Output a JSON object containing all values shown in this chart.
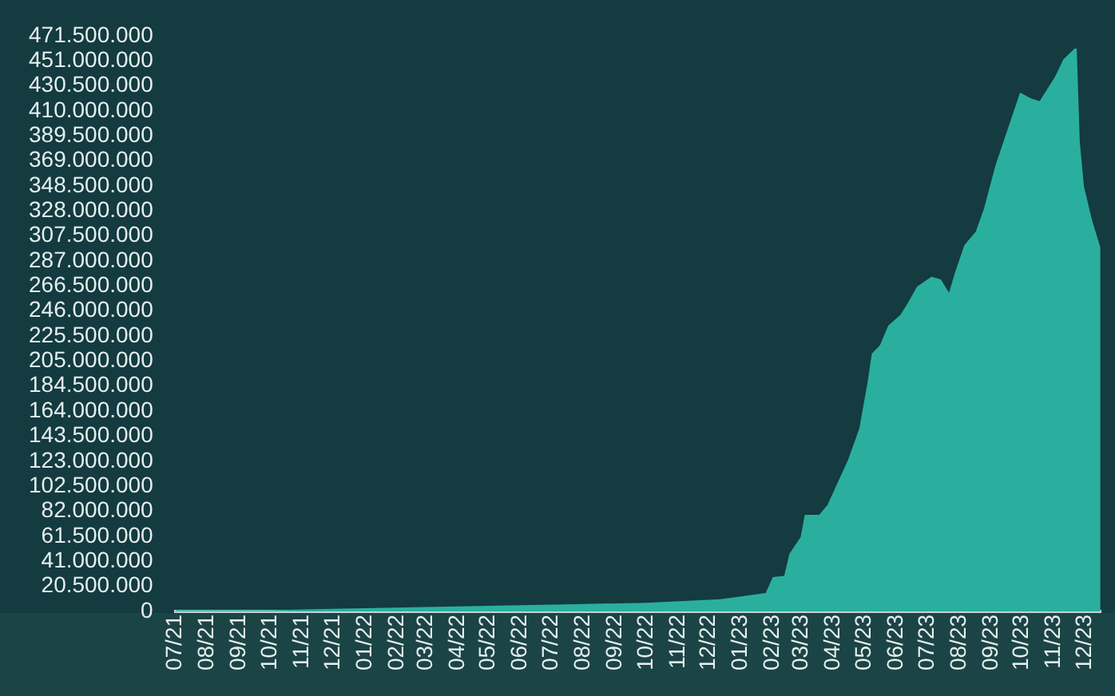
{
  "chart_data": {
    "type": "area",
    "x": [
      "2021-07-01",
      "2021-08-15",
      "2021-10-01",
      "2021-12-01",
      "2022-02-01",
      "2022-04-01",
      "2022-06-01",
      "2022-08-01",
      "2022-10-01",
      "2022-12-12",
      "2023-01-25",
      "2023-02-01",
      "2023-02-12",
      "2023-02-17",
      "2023-02-28",
      "2023-03-04",
      "2023-03-18",
      "2023-03-26",
      "2023-04-03",
      "2023-04-15",
      "2023-04-26",
      "2023-05-04",
      "2023-05-08",
      "2023-05-16",
      "2023-05-24",
      "2023-06-05",
      "2023-06-13",
      "2023-06-21",
      "2023-07-05",
      "2023-07-14",
      "2023-07-22",
      "2023-07-28",
      "2023-08-06",
      "2023-08-17",
      "2023-08-25",
      "2023-09-05",
      "2023-09-17",
      "2023-09-29",
      "2023-10-10",
      "2023-10-18",
      "2023-11-02",
      "2023-11-10",
      "2023-11-21",
      "2023-11-23",
      "2023-11-26",
      "2023-11-30",
      "2023-12-08",
      "2023-12-16"
    ],
    "series": [
      {
        "color": "#2aaf9f",
        "values": [
          1000000,
          1000000,
          1000000,
          2000000,
          3000000,
          4000000,
          5000000,
          6000000,
          7000000,
          10000000,
          15000000,
          28000000,
          29000000,
          47000000,
          61000000,
          79000000,
          79000000,
          87000000,
          102000000,
          124000000,
          150000000,
          188000000,
          211000000,
          218000000,
          234000000,
          243000000,
          254000000,
          266000000,
          274000000,
          272000000,
          261000000,
          278000000,
          300000000,
          311000000,
          330000000,
          365000000,
          395000000,
          425000000,
          420000000,
          418000000,
          438000000,
          452000000,
          461000000,
          461000000,
          384000000,
          348000000,
          320000000,
          298000000
        ]
      }
    ],
    "xlim": [
      "2021-07-01",
      "2023-12-16"
    ],
    "xticks": [
      {
        "value": "2021-07-01",
        "label": "07/21"
      },
      {
        "value": "2021-08-01",
        "label": "08/21"
      },
      {
        "value": "2021-09-01",
        "label": "09/21"
      },
      {
        "value": "2021-10-01",
        "label": "10/21"
      },
      {
        "value": "2021-11-01",
        "label": "11/21"
      },
      {
        "value": "2021-12-01",
        "label": "12/21"
      },
      {
        "value": "2022-01-01",
        "label": "01/22"
      },
      {
        "value": "2022-02-01",
        "label": "02/22"
      },
      {
        "value": "2022-03-01",
        "label": "03/22"
      },
      {
        "value": "2022-04-01",
        "label": "04/22"
      },
      {
        "value": "2022-05-01",
        "label": "05/22"
      },
      {
        "value": "2022-06-01",
        "label": "06/22"
      },
      {
        "value": "2022-07-01",
        "label": "07/22"
      },
      {
        "value": "2022-08-01",
        "label": "08/22"
      },
      {
        "value": "2022-09-01",
        "label": "09/22"
      },
      {
        "value": "2022-10-01",
        "label": "10/22"
      },
      {
        "value": "2022-11-01",
        "label": "11/22"
      },
      {
        "value": "2022-12-01",
        "label": "12/22"
      },
      {
        "value": "2023-01-01",
        "label": "01/23"
      },
      {
        "value": "2023-02-01",
        "label": "02/23"
      },
      {
        "value": "2023-03-01",
        "label": "03/23"
      },
      {
        "value": "2023-04-01",
        "label": "04/23"
      },
      {
        "value": "2023-05-01",
        "label": "05/23"
      },
      {
        "value": "2023-06-01",
        "label": "06/23"
      },
      {
        "value": "2023-07-01",
        "label": "07/23"
      },
      {
        "value": "2023-08-01",
        "label": "08/23"
      },
      {
        "value": "2023-09-01",
        "label": "09/23"
      },
      {
        "value": "2023-10-01",
        "label": "10/23"
      },
      {
        "value": "2023-11-01",
        "label": "11/23"
      },
      {
        "value": "2023-12-01",
        "label": "12/23"
      }
    ],
    "ylim": [
      0,
      471500000
    ],
    "yticks": [
      0,
      {
        "value": 20500000,
        "label": "20.500.000"
      },
      {
        "value": 41000000,
        "label": "41.000.000"
      },
      {
        "value": 61500000,
        "label": "61.500.000"
      },
      {
        "value": 82000000,
        "label": "82.000.000"
      },
      {
        "value": 102500000,
        "label": "102.500.000"
      },
      {
        "value": 123000000,
        "label": "123.000.000"
      },
      {
        "value": 143500000,
        "label": "143.500.000"
      },
      {
        "value": 164000000,
        "label": "164.000.000"
      },
      {
        "value": 184500000,
        "label": "184.500.000"
      },
      {
        "value": 205000000,
        "label": "205.000.000"
      },
      {
        "value": 225500000,
        "label": "225.500.000"
      },
      {
        "value": 246000000,
        "label": "246.000.000"
      },
      {
        "value": 266500000,
        "label": "266.500.000"
      },
      {
        "value": 287000000,
        "label": "287.000.000"
      },
      {
        "value": 307500000,
        "label": "307.500.000"
      },
      {
        "value": 328000000,
        "label": "328.000.000"
      },
      {
        "value": 348500000,
        "label": "348.500.000"
      },
      {
        "value": 369000000,
        "label": "369.000.000"
      },
      {
        "value": 389500000,
        "label": "389.500.000"
      },
      {
        "value": 410000000,
        "label": "410.000.000"
      },
      {
        "value": 430500000,
        "label": "430.500.000"
      },
      {
        "value": 451000000,
        "label": "451.000.000"
      },
      {
        "value": 471500000,
        "label": "471.500.000"
      }
    ]
  }
}
